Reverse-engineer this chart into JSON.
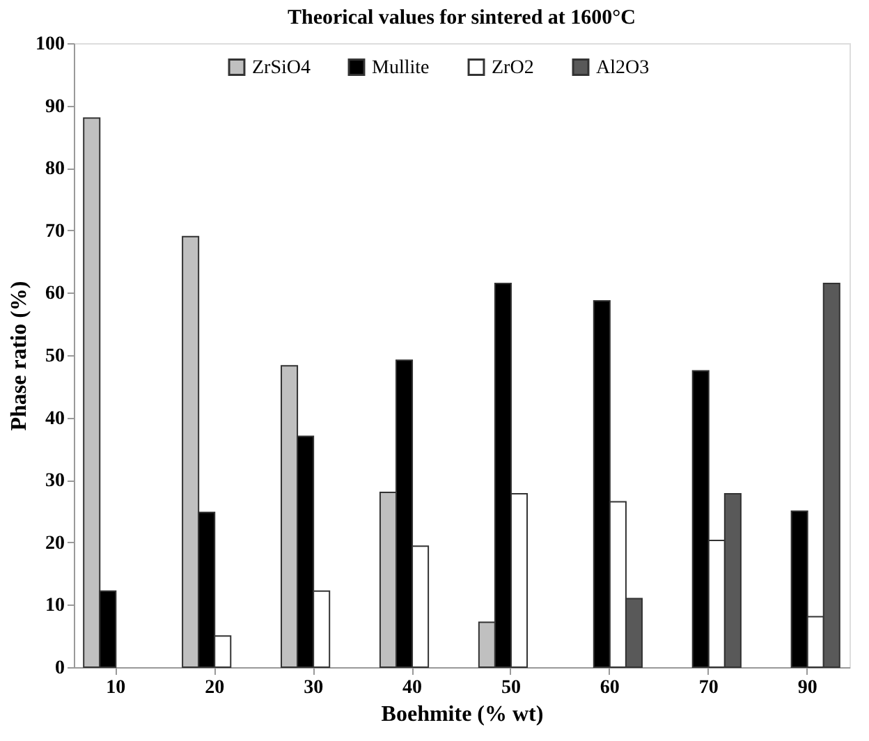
{
  "chart_data": {
    "type": "bar",
    "title": "Theorical values for sintered at 1600°C",
    "xlabel": "Boehmite (% wt)",
    "ylabel": "Phase ratio (%)",
    "categories": [
      "10",
      "20",
      "30",
      "40",
      "50",
      "60",
      "70",
      "90"
    ],
    "series": [
      {
        "name": "ZrSiO4",
        "color": "#c0c0c0",
        "values": [
          88,
          69,
          48.3,
          28,
          7.2,
          null,
          null,
          null
        ]
      },
      {
        "name": "Mullite",
        "color": "#000000",
        "values": [
          12.2,
          24.8,
          37,
          49.2,
          61.5,
          58.7,
          47.5,
          25
        ]
      },
      {
        "name": "ZrO2",
        "color": "#ffffff",
        "values": [
          null,
          5,
          12.2,
          19.4,
          27.8,
          26.5,
          20.3,
          8.1
        ]
      },
      {
        "name": "Al2O3",
        "color": "#595959",
        "values": [
          null,
          null,
          null,
          null,
          null,
          11,
          27.8,
          61.5
        ]
      }
    ],
    "ylim": [
      0,
      100
    ],
    "yticks": [
      0,
      10,
      20,
      30,
      40,
      50,
      60,
      70,
      80,
      90,
      100
    ],
    "grid": false,
    "legend": "top"
  }
}
